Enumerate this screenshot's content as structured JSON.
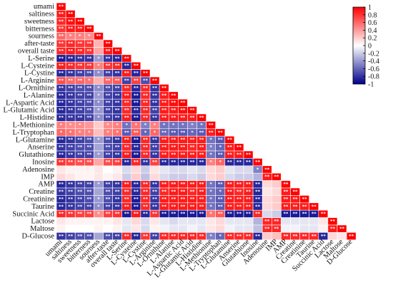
{
  "chart_data": {
    "type": "heatmap",
    "title": "",
    "xlabel": "",
    "ylabel": "",
    "shape": "lower-triangle",
    "variables": [
      "umami",
      "saltiness",
      "sweetness",
      "bitterness",
      "sourness",
      "after-taste",
      "overall taste",
      "L-Serine",
      "L-Cysteine",
      "L-Cystine",
      "L-Arginine",
      "L-Ornithine",
      "L-Alanine",
      "L-Aspartic Acid",
      "L-Glutamic Acid",
      "L-Histidine",
      "L-Methionine",
      "L-Tryptophan",
      "L-Glutamine",
      "Anserine",
      "Glutathione",
      "Inosine",
      "Adenosine",
      "IMP",
      "AMP",
      "Creatine",
      "Creatinine",
      "Taurine",
      "Succinic Acid",
      "Lactose",
      "Maltose",
      "D-Glucose"
    ],
    "row_labels": [
      "umami",
      "saltiness",
      "sweetness",
      "bitterness",
      "sourness",
      "after-taste",
      "overall taste",
      "L-Serine",
      "L-Cysteine",
      "L-Cystine",
      "L-Arginine",
      "L-Ornithine",
      "L-Alanine",
      "L-Aspartic Acid",
      "L-Glutamic Acid",
      "L-Histidine",
      "L-Methionine",
      "L-Tryptophan",
      "L-Glutamine",
      "Anserine",
      "Glutathione",
      "Inosine",
      "Adenosine",
      "IMP",
      "AMP",
      "Creatine",
      "Creatinine",
      "Taurine",
      "Succinic Acid",
      "Lactose",
      "Maltose",
      "D-Glucose"
    ],
    "col_labels": [
      "umami",
      "saltiness",
      "sweetness",
      "bitterness",
      "sourness",
      "after-taste",
      "overall taste",
      "L-Serine",
      "L-Cysteine",
      "L-Cystine",
      "L-Arginine",
      "L-Ornithine",
      "L-Alanine",
      "L-Aspartic Acid",
      "L-Glutamic Acid",
      "L-Histidine",
      "L-Methionine",
      "L-Tryptophan",
      "L-Glutamine",
      "Anserine",
      "Glutathione",
      "Inosine",
      "Adenosine",
      "IMP",
      "AMP",
      "Creatine",
      "Creatinine",
      "Taurine",
      "Succinic Acid",
      "Lactose",
      "Maltose",
      "D-Glucose"
    ],
    "values": [
      [
        1.0
      ],
      [
        0.9,
        1.0
      ],
      [
        0.85,
        0.95,
        1.0
      ],
      [
        0.8,
        0.9,
        0.9,
        1.0
      ],
      [
        0.6,
        0.5,
        0.5,
        0.45,
        1.0
      ],
      [
        0.8,
        0.85,
        0.8,
        0.8,
        0.3,
        1.0
      ],
      [
        0.85,
        0.9,
        0.85,
        0.8,
        0.35,
        0.9,
        1.0
      ],
      [
        -0.9,
        -0.85,
        -0.8,
        -0.8,
        -0.4,
        -0.8,
        -0.85,
        1.0
      ],
      [
        0.9,
        0.85,
        0.8,
        0.8,
        0.5,
        0.8,
        0.85,
        -0.85,
        1.0
      ],
      [
        -0.85,
        -0.8,
        -0.75,
        -0.7,
        -0.45,
        -0.75,
        -0.8,
        0.9,
        -0.85,
        1.0
      ],
      [
        0.7,
        0.6,
        0.6,
        0.55,
        0.3,
        0.6,
        0.65,
        -0.75,
        0.75,
        -0.7,
        1.0
      ],
      [
        -0.8,
        -0.75,
        -0.7,
        -0.7,
        -0.45,
        -0.7,
        -0.75,
        0.85,
        -0.85,
        0.85,
        -0.8,
        1.0
      ],
      [
        -0.85,
        -0.8,
        -0.75,
        -0.75,
        -0.4,
        -0.75,
        -0.8,
        0.9,
        -0.9,
        0.85,
        -0.8,
        0.9,
        1.0
      ],
      [
        -0.85,
        -0.8,
        -0.75,
        -0.7,
        -0.45,
        -0.75,
        -0.8,
        0.85,
        -0.9,
        0.85,
        -0.8,
        0.9,
        0.95,
        1.0
      ],
      [
        -0.85,
        -0.8,
        -0.75,
        -0.7,
        -0.4,
        -0.75,
        -0.8,
        0.85,
        -0.85,
        0.85,
        -0.75,
        0.9,
        0.9,
        0.95,
        1.0
      ],
      [
        -0.85,
        -0.8,
        -0.8,
        -0.75,
        -0.45,
        -0.75,
        -0.8,
        0.9,
        -0.9,
        0.85,
        -0.8,
        0.9,
        0.9,
        0.9,
        0.9,
        1.0
      ],
      [
        0.5,
        0.45,
        0.45,
        0.4,
        0.2,
        0.45,
        0.5,
        -0.55,
        0.55,
        -0.5,
        0.5,
        -0.55,
        -0.55,
        -0.55,
        -0.5,
        -0.55,
        1.0
      ],
      [
        0.6,
        0.55,
        0.5,
        0.5,
        0.25,
        0.5,
        0.55,
        -0.65,
        0.65,
        -0.6,
        0.6,
        -0.6,
        -0.65,
        -0.65,
        -0.6,
        -0.65,
        0.9,
        1.0
      ],
      [
        -0.85,
        -0.8,
        -0.75,
        -0.7,
        -0.4,
        -0.7,
        -0.8,
        0.9,
        -0.9,
        0.85,
        -0.8,
        0.9,
        0.9,
        0.9,
        0.9,
        0.9,
        -0.55,
        -0.65,
        1.0
      ],
      [
        -0.8,
        -0.75,
        -0.7,
        -0.7,
        -0.35,
        -0.7,
        -0.75,
        0.85,
        -0.85,
        0.85,
        -0.75,
        0.9,
        0.9,
        0.9,
        0.85,
        0.9,
        -0.5,
        -0.6,
        0.9,
        1.0
      ],
      [
        -0.85,
        -0.8,
        -0.75,
        -0.75,
        -0.4,
        -0.75,
        -0.8,
        0.9,
        -0.9,
        0.85,
        -0.8,
        0.9,
        0.9,
        0.9,
        0.9,
        0.9,
        -0.55,
        -0.65,
        0.9,
        0.9,
        1.0
      ],
      [
        0.8,
        0.75,
        0.7,
        0.7,
        0.35,
        0.7,
        0.75,
        -0.85,
        0.85,
        -0.8,
        0.75,
        -0.85,
        -0.85,
        -0.85,
        -0.85,
        -0.85,
        0.5,
        0.6,
        -0.85,
        -0.85,
        -0.85,
        1.0
      ],
      [
        0.1,
        0.05,
        0.05,
        0.05,
        0.1,
        0.0,
        0.05,
        -0.15,
        0.15,
        -0.2,
        0.1,
        -0.1,
        -0.15,
        -0.15,
        -0.1,
        -0.15,
        0.15,
        0.2,
        -0.1,
        -0.15,
        -0.15,
        -0.5,
        1.0
      ],
      [
        0.15,
        0.1,
        0.05,
        0.05,
        0.1,
        0.05,
        0.1,
        -0.2,
        0.2,
        -0.25,
        0.15,
        -0.15,
        -0.2,
        -0.2,
        -0.15,
        -0.2,
        0.15,
        0.2,
        -0.15,
        -0.2,
        -0.2,
        -0.3,
        0.9,
        1.0
      ],
      [
        -0.85,
        -0.8,
        -0.75,
        -0.75,
        -0.4,
        -0.75,
        -0.8,
        0.9,
        -0.85,
        0.85,
        -0.8,
        0.9,
        0.9,
        0.9,
        0.9,
        0.9,
        -0.55,
        -0.65,
        0.9,
        0.9,
        0.9,
        -0.85,
        0.15,
        0.2,
        1.0
      ],
      [
        -0.8,
        -0.75,
        -0.7,
        -0.7,
        -0.35,
        -0.7,
        -0.75,
        0.85,
        -0.85,
        0.85,
        -0.75,
        0.85,
        0.9,
        0.9,
        0.85,
        0.9,
        -0.55,
        -0.6,
        0.9,
        0.85,
        0.9,
        -0.85,
        0.1,
        0.15,
        0.9,
        1.0
      ],
      [
        -0.85,
        -0.8,
        -0.75,
        -0.7,
        -0.4,
        -0.7,
        -0.8,
        0.85,
        -0.9,
        0.85,
        -0.8,
        0.9,
        0.9,
        0.9,
        0.9,
        0.9,
        -0.55,
        -0.65,
        0.9,
        0.9,
        0.9,
        -0.85,
        0.15,
        0.2,
        0.9,
        0.9,
        1.0
      ],
      [
        -0.85,
        -0.8,
        -0.75,
        -0.75,
        -0.45,
        -0.75,
        -0.8,
        0.9,
        -0.9,
        0.85,
        -0.8,
        0.9,
        0.9,
        0.9,
        0.9,
        0.9,
        -0.55,
        -0.65,
        0.9,
        0.9,
        0.9,
        -0.85,
        0.15,
        0.2,
        0.9,
        0.9,
        0.9,
        1.0
      ],
      [
        0.85,
        0.8,
        0.75,
        0.75,
        0.45,
        0.75,
        0.8,
        -0.9,
        0.9,
        -0.85,
        0.8,
        -0.9,
        -0.9,
        -0.9,
        -0.9,
        -0.9,
        0.55,
        0.65,
        -0.9,
        -0.9,
        -0.9,
        0.85,
        -0.15,
        -0.2,
        -0.9,
        -0.9,
        -0.9,
        -0.9,
        1.0
      ],
      [
        0.1,
        0.05,
        0.05,
        0.05,
        0.05,
        0.05,
        0.1,
        -0.1,
        0.15,
        -0.15,
        0.1,
        -0.1,
        -0.15,
        -0.1,
        -0.1,
        -0.1,
        0.1,
        0.15,
        -0.1,
        -0.1,
        -0.1,
        -0.3,
        0.85,
        0.85,
        -0.1,
        -0.1,
        -0.1,
        -0.1,
        0.1,
        1.0
      ],
      [
        0.05,
        0.0,
        0.0,
        0.0,
        0.05,
        0.0,
        0.05,
        -0.1,
        0.1,
        -0.15,
        0.05,
        -0.05,
        -0.1,
        -0.1,
        -0.05,
        -0.1,
        0.1,
        0.15,
        -0.05,
        -0.1,
        -0.1,
        -0.25,
        0.85,
        0.85,
        -0.05,
        -0.05,
        -0.1,
        -0.1,
        0.05,
        0.9,
        1.0
      ],
      [
        -0.8,
        -0.75,
        -0.7,
        -0.7,
        -0.35,
        -0.7,
        -0.75,
        0.85,
        -0.85,
        0.8,
        -0.75,
        0.85,
        0.85,
        0.85,
        0.85,
        0.85,
        -0.5,
        -0.6,
        0.85,
        0.85,
        0.85,
        -0.85,
        0.2,
        0.25,
        0.85,
        0.85,
        0.85,
        0.85,
        -0.85,
        0.15,
        0.1,
        1.0
      ]
    ],
    "significance": [
      [
        "**"
      ],
      [
        "**",
        "**"
      ],
      [
        "**",
        "**",
        "**"
      ],
      [
        "**",
        "**",
        "**",
        "**"
      ],
      [
        "**",
        "*",
        "*",
        "*",
        "**"
      ],
      [
        "**",
        "**",
        "**",
        "**",
        "",
        "**"
      ],
      [
        "**",
        "**",
        "**",
        "**",
        "",
        "**",
        "**"
      ],
      [
        "**",
        "**",
        "**",
        "**",
        "*",
        "**",
        "**",
        "**"
      ],
      [
        "**",
        "**",
        "**",
        "**",
        "*",
        "**",
        "**",
        "**",
        "**"
      ],
      [
        "**",
        "**",
        "**",
        "**",
        "*",
        "**",
        "**",
        "**",
        "**",
        "**"
      ],
      [
        "**",
        "**",
        "**",
        "*",
        "",
        "**",
        "**",
        "**",
        "**",
        "**",
        "**"
      ],
      [
        "**",
        "**",
        "**",
        "**",
        "*",
        "**",
        "**",
        "**",
        "**",
        "**",
        "**",
        "**"
      ],
      [
        "**",
        "**",
        "**",
        "**",
        "*",
        "**",
        "**",
        "**",
        "**",
        "**",
        "**",
        "**",
        "**"
      ],
      [
        "**",
        "**",
        "**",
        "**",
        "*",
        "**",
        "**",
        "**",
        "**",
        "**",
        "**",
        "**",
        "**",
        "**"
      ],
      [
        "**",
        "**",
        "**",
        "**",
        "*",
        "**",
        "**",
        "**",
        "**",
        "**",
        "**",
        "**",
        "**",
        "**",
        "**"
      ],
      [
        "**",
        "**",
        "**",
        "**",
        "*",
        "**",
        "**",
        "**",
        "**",
        "**",
        "**",
        "**",
        "**",
        "**",
        "**",
        "**"
      ],
      [
        "*",
        "*",
        "*",
        "",
        "",
        "*",
        "*",
        "*",
        "*",
        "*",
        "*",
        "*",
        "*",
        "*",
        "*",
        "*",
        "**"
      ],
      [
        "*",
        "*",
        "*",
        "*",
        "",
        "*",
        "*",
        "**",
        "**",
        "*",
        "*",
        "**",
        "**",
        "**",
        "*",
        "**",
        "**",
        "**"
      ],
      [
        "**",
        "**",
        "**",
        "**",
        "*",
        "**",
        "**",
        "**",
        "**",
        "**",
        "**",
        "**",
        "**",
        "**",
        "**",
        "**",
        "*",
        "**",
        "**"
      ],
      [
        "**",
        "**",
        "**",
        "**",
        "",
        "**",
        "**",
        "**",
        "**",
        "**",
        "**",
        "**",
        "**",
        "**",
        "**",
        "**",
        "*",
        "*",
        "**",
        "**"
      ],
      [
        "**",
        "**",
        "**",
        "**",
        "*",
        "**",
        "**",
        "**",
        "**",
        "**",
        "**",
        "**",
        "**",
        "**",
        "**",
        "**",
        "*",
        "**",
        "**",
        "**",
        "**"
      ],
      [
        "**",
        "**",
        "**",
        "**",
        "",
        "**",
        "**",
        "**",
        "**",
        "**",
        "**",
        "**",
        "**",
        "**",
        "**",
        "**",
        "*",
        "*",
        "**",
        "**",
        "**",
        "**"
      ],
      [
        "",
        "",
        "",
        "",
        "",
        "",
        "",
        "",
        "",
        "",
        "",
        "",
        "",
        "",
        "",
        "",
        "",
        "",
        "",
        "",
        "",
        "*",
        "**"
      ],
      [
        "",
        "",
        "",
        "",
        "",
        "",
        "",
        "",
        "",
        "",
        "",
        "",
        "",
        "",
        "",
        "",
        "",
        "",
        "",
        "",
        "",
        "",
        "**",
        "**"
      ],
      [
        "**",
        "**",
        "**",
        "**",
        "*",
        "**",
        "**",
        "**",
        "**",
        "**",
        "**",
        "**",
        "**",
        "**",
        "**",
        "**",
        "*",
        "**",
        "**",
        "**",
        "**",
        "**",
        "",
        "",
        "**"
      ],
      [
        "**",
        "**",
        "**",
        "**",
        "",
        "**",
        "**",
        "**",
        "**",
        "**",
        "**",
        "**",
        "**",
        "**",
        "**",
        "**",
        "*",
        "*",
        "**",
        "**",
        "**",
        "**",
        "",
        "",
        "**",
        "**"
      ],
      [
        "**",
        "**",
        "**",
        "**",
        "*",
        "**",
        "**",
        "**",
        "**",
        "**",
        "**",
        "**",
        "**",
        "**",
        "**",
        "**",
        "*",
        "**",
        "**",
        "**",
        "**",
        "**",
        "",
        "",
        "**",
        "**",
        "**"
      ],
      [
        "**",
        "**",
        "**",
        "**",
        "*",
        "**",
        "**",
        "**",
        "**",
        "**",
        "**",
        "**",
        "**",
        "**",
        "**",
        "**",
        "*",
        "**",
        "**",
        "**",
        "**",
        "**",
        "",
        "",
        "**",
        "**",
        "**",
        "**"
      ],
      [
        "**",
        "**",
        "**",
        "**",
        "*",
        "**",
        "**",
        "**",
        "**",
        "**",
        "**",
        "**",
        "**",
        "**",
        "**",
        "**",
        "*",
        "**",
        "**",
        "**",
        "**",
        "**",
        "",
        "",
        "**",
        "**",
        "**",
        "**",
        "**"
      ],
      [
        "",
        "",
        "",
        "",
        "",
        "",
        "",
        "",
        "",
        "",
        "",
        "",
        "",
        "",
        "",
        "",
        "",
        "",
        "",
        "",
        "",
        "",
        "**",
        "**",
        "",
        "",
        "",
        "",
        "",
        "**"
      ],
      [
        "",
        "",
        "",
        "",
        "",
        "",
        "",
        "",
        "",
        "",
        "",
        "",
        "",
        "",
        "",
        "",
        "",
        "",
        "",
        "",
        "",
        "",
        "**",
        "**",
        "",
        "",
        "",
        "",
        "",
        "**",
        "**"
      ],
      [
        "**",
        "**",
        "**",
        "**",
        "",
        "**",
        "**",
        "**",
        "**",
        "**",
        "**",
        "**",
        "**",
        "**",
        "**",
        "**",
        "*",
        "*",
        "**",
        "**",
        "**",
        "**",
        "",
        "",
        "**",
        "**",
        "**",
        "**",
        "**",
        "",
        "",
        "**"
      ]
    ],
    "colorbar": {
      "ticks": [
        1,
        0.8,
        0.6,
        0.4,
        0.2,
        0,
        -0.2,
        -0.4,
        -0.6,
        -0.8,
        -1
      ],
      "tick_labels": [
        "1",
        "0.8",
        "0.6",
        "0.4",
        "0.2",
        "0",
        "-0.2",
        "-0.4",
        "-0.6",
        "-0.8",
        "-1"
      ],
      "range": [
        -1,
        1
      ],
      "position": "right"
    },
    "colors": {
      "positive": "#ff0000",
      "zero": "#ffffff",
      "negative": "#00008b"
    }
  }
}
